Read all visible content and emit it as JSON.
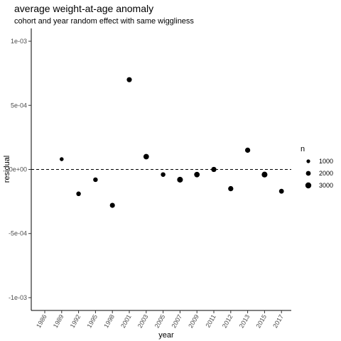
{
  "chart_data": {
    "type": "scatter",
    "title": "average weight-at-age anomaly",
    "subtitle": "cohort and year random effect with same wiggliness",
    "xlabel": "year",
    "ylabel": "residual",
    "x_categories": [
      "1986",
      "1989",
      "1992",
      "1995",
      "1998",
      "2001",
      "2003",
      "2005",
      "2007",
      "2009",
      "2011",
      "2012",
      "2013",
      "2015",
      "2017"
    ],
    "y_ticks": [
      {
        "value": -0.001,
        "label": "-1e-03"
      },
      {
        "value": -0.0005,
        "label": "-5e-04"
      },
      {
        "value": 0,
        "label": "0e+00"
      },
      {
        "value": 0.0005,
        "label": "5e-04"
      },
      {
        "value": 0.001,
        "label": "1e-03"
      }
    ],
    "ylim": [
      -0.0011,
      0.0011
    ],
    "reference_line": {
      "y": 0,
      "style": "dashed"
    },
    "grid": false,
    "legend": {
      "title": "n",
      "placement": "right",
      "entries": [
        {
          "label": "1000",
          "n": 1000
        },
        {
          "label": "2000",
          "n": 2000
        },
        {
          "label": "3000",
          "n": 3000
        }
      ]
    },
    "points": [
      {
        "x": "1989",
        "y": 8e-05,
        "n": 1200
      },
      {
        "x": "1992",
        "y": -0.00019,
        "n": 1800
      },
      {
        "x": "1995",
        "y": -8e-05,
        "n": 1800
      },
      {
        "x": "1998",
        "y": -0.00028,
        "n": 2200
      },
      {
        "x": "2001",
        "y": 0.0007,
        "n": 2200
      },
      {
        "x": "2003",
        "y": 0.0001,
        "n": 2600
      },
      {
        "x": "2005",
        "y": -4e-05,
        "n": 1800
      },
      {
        "x": "2007",
        "y": -8e-05,
        "n": 2800
      },
      {
        "x": "2009",
        "y": -4e-05,
        "n": 2600
      },
      {
        "x": "2011",
        "y": 0.0,
        "n": 2300
      },
      {
        "x": "2012",
        "y": -0.00015,
        "n": 2300
      },
      {
        "x": "2013",
        "y": 0.00015,
        "n": 2300
      },
      {
        "x": "2015",
        "y": -4e-05,
        "n": 2800
      },
      {
        "x": "2017",
        "y": -0.00017,
        "n": 2000
      }
    ],
    "colors": {
      "point": "#000000",
      "axis": "#000000",
      "tick_text": "#4d4d4d"
    }
  }
}
